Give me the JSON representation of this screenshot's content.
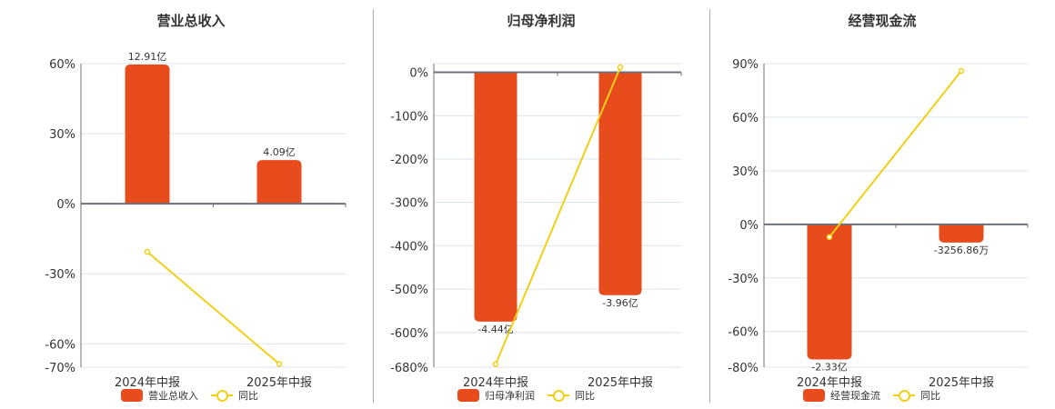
{
  "colors": {
    "bar": "#e84c1c",
    "line": "#f2cf17",
    "grid": "#dde3ec",
    "axis": "#6e7079",
    "separator": "#aaaaaa"
  },
  "legend_line_label": "同比",
  "charts": [
    {
      "title": "营业总收入",
      "bar_series": "营业总收入",
      "line_series": "同比",
      "categories": [
        "2024年中报",
        "2025年中报"
      ],
      "bar_labels": [
        "12.91亿",
        "4.09亿"
      ],
      "bar_values_pct": [
        59.6,
        18.7
      ],
      "yoy_pct": [
        -20.6,
        -68.6
      ],
      "yticks": [
        60,
        30,
        0,
        -30,
        -60,
        -70
      ],
      "ytick_labels": [
        "60%",
        "30%",
        "0%",
        "-30%",
        "-60%",
        "-70%"
      ],
      "ylim": [
        -70,
        60
      ]
    },
    {
      "title": "归母净利润",
      "bar_series": "归母净利润",
      "line_series": "同比",
      "categories": [
        "2024年中报",
        "2025年中报"
      ],
      "bar_labels": [
        "-4.44亿",
        "-3.96亿"
      ],
      "bar_values_pct": [
        -575,
        -514
      ],
      "yoy_pct": [
        -673,
        11.5
      ],
      "yticks": [
        0,
        -100,
        -200,
        -300,
        -400,
        -500,
        -600,
        -680
      ],
      "ytick_labels": [
        "0%",
        "-100%",
        "-200%",
        "-300%",
        "-400%",
        "-500%",
        "-600%",
        "-680%"
      ],
      "ylim": [
        -680,
        20
      ]
    },
    {
      "title": "经营现金流",
      "bar_series": "经营现金流",
      "line_series": "同比",
      "categories": [
        "2024年中报",
        "2025年中报"
      ],
      "bar_labels": [
        "-2.33亿",
        "-3256.86万"
      ],
      "bar_values_pct": [
        -75.7,
        -10.2
      ],
      "yoy_pct": [
        -7.1,
        85.9
      ],
      "yticks": [
        90,
        60,
        30,
        0,
        -30,
        -60,
        -80
      ],
      "ytick_labels": [
        "90%",
        "60%",
        "30%",
        "0%",
        "-30%",
        "-60%",
        "-80%"
      ],
      "ylim": [
        -80,
        90
      ]
    }
  ],
  "chart_data": [
    {
      "type": "bar",
      "title": "营业总收入",
      "categories": [
        "2024年中报",
        "2025年中报"
      ],
      "series": [
        {
          "name": "营业总收入",
          "type": "bar",
          "values": [
            59.6,
            18.7
          ],
          "labels": [
            "12.91亿",
            "4.09亿"
          ]
        },
        {
          "name": "同比",
          "type": "line",
          "values": [
            -20.6,
            -68.6
          ]
        }
      ],
      "xlabel": "",
      "ylabel": "",
      "ylim": [
        -70,
        60
      ],
      "yticks": [
        "60%",
        "30%",
        "0%",
        "-30%",
        "-60%",
        "-70%"
      ],
      "grid": true,
      "legend_position": "bottom"
    },
    {
      "type": "bar",
      "title": "归母净利润",
      "categories": [
        "2024年中报",
        "2025年中报"
      ],
      "series": [
        {
          "name": "归母净利润",
          "type": "bar",
          "values": [
            -575,
            -514
          ],
          "labels": [
            "-4.44亿",
            "-3.96亿"
          ]
        },
        {
          "name": "同比",
          "type": "line",
          "values": [
            -673,
            11.5
          ]
        }
      ],
      "xlabel": "",
      "ylabel": "",
      "ylim": [
        -680,
        20
      ],
      "yticks": [
        "0%",
        "-100%",
        "-200%",
        "-300%",
        "-400%",
        "-500%",
        "-600%",
        "-680%"
      ],
      "grid": true,
      "legend_position": "bottom"
    },
    {
      "type": "bar",
      "title": "经营现金流",
      "categories": [
        "2024年中报",
        "2025年中报"
      ],
      "series": [
        {
          "name": "经营现金流",
          "type": "bar",
          "values": [
            -75.7,
            -10.2
          ],
          "labels": [
            "-2.33亿",
            "-3256.86万"
          ]
        },
        {
          "name": "同比",
          "type": "line",
          "values": [
            -7.1,
            85.9
          ]
        }
      ],
      "xlabel": "",
      "ylabel": "",
      "ylim": [
        -80,
        90
      ],
      "yticks": [
        "90%",
        "60%",
        "30%",
        "0%",
        "-30%",
        "-60%",
        "-80%"
      ],
      "grid": true,
      "legend_position": "bottom"
    }
  ]
}
